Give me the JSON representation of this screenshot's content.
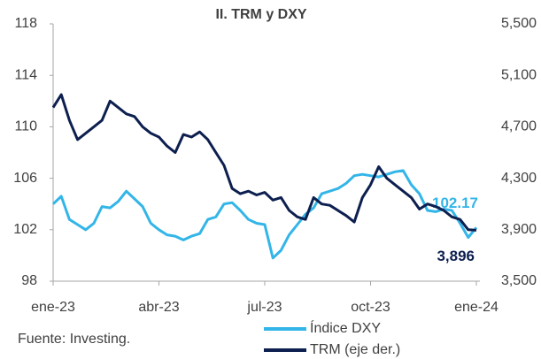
{
  "chart_data": {
    "type": "line",
    "title": "II. TRM y DXY",
    "source": "Fuente: Investing.",
    "categories": [
      "ene-23",
      null,
      null,
      null,
      null,
      null,
      null,
      null,
      null,
      null,
      null,
      null,
      null,
      "abr-23",
      null,
      null,
      null,
      null,
      null,
      null,
      null,
      null,
      null,
      null,
      null,
      null,
      "jul-23",
      null,
      null,
      null,
      null,
      null,
      null,
      null,
      null,
      null,
      null,
      null,
      null,
      "oct-23",
      null,
      null,
      null,
      null,
      null,
      null,
      null,
      null,
      null,
      null,
      null,
      null,
      "ene-24"
    ],
    "series": [
      {
        "name": "Índice DXY",
        "color": "#33b5e8",
        "axis": "y",
        "values": [
          104.0,
          104.6,
          102.8,
          102.4,
          102.0,
          102.5,
          103.8,
          103.7,
          104.2,
          105.0,
          104.4,
          103.8,
          102.5,
          102.0,
          101.6,
          101.5,
          101.2,
          101.5,
          101.7,
          102.8,
          103.0,
          104.0,
          104.1,
          103.5,
          102.8,
          102.5,
          102.4,
          99.8,
          100.4,
          101.6,
          102.4,
          103.2,
          103.7,
          104.8,
          105.0,
          105.2,
          105.6,
          106.2,
          106.3,
          106.2,
          106.1,
          106.3,
          106.5,
          106.6,
          105.5,
          104.8,
          103.5,
          103.4,
          103.6,
          103.5,
          102.5,
          101.4,
          102.17
        ]
      },
      {
        "name": "TRM (eje der.)",
        "color": "#0d1f4f",
        "axis": "y2",
        "values": [
          4850,
          4950,
          4750,
          4600,
          4650,
          4700,
          4750,
          4900,
          4850,
          4800,
          4780,
          4700,
          4650,
          4620,
          4550,
          4500,
          4640,
          4620,
          4660,
          4600,
          4500,
          4400,
          4220,
          4180,
          4200,
          4170,
          4190,
          4130,
          4150,
          4050,
          4000,
          3980,
          4150,
          4100,
          4090,
          4050,
          4010,
          3960,
          4150,
          4250,
          4390,
          4300,
          4250,
          4200,
          4150,
          4060,
          4100,
          4080,
          4050,
          4000,
          3980,
          3900,
          3896
        ],
        "value_labels": [
          null,
          null,
          null,
          null,
          null,
          null,
          null,
          null,
          null,
          null,
          null,
          null,
          null,
          null,
          null,
          null,
          null,
          null,
          null,
          null,
          null,
          null,
          null,
          null,
          null,
          null,
          null,
          null,
          null,
          null,
          null,
          null,
          null,
          null,
          null,
          null,
          null,
          null,
          null,
          null,
          null,
          null,
          null,
          null,
          null,
          null,
          null,
          null,
          null,
          null,
          null,
          null,
          "3,896"
        ]
      }
    ],
    "ylim": [
      98,
      118
    ],
    "yticks": [
      98,
      102,
      106,
      110,
      114,
      118
    ],
    "y2lim": [
      3500,
      5500
    ],
    "y2ticks": [
      {
        "value": 3500,
        "label": "3,500"
      },
      {
        "value": 3900,
        "label": "3,900"
      },
      {
        "value": 4300,
        "label": "4,300"
      },
      {
        "value": 4700,
        "label": "4,700"
      },
      {
        "value": 5100,
        "label": "5,100"
      },
      {
        "value": 5500,
        "label": "5,500"
      }
    ],
    "grid": false
  }
}
